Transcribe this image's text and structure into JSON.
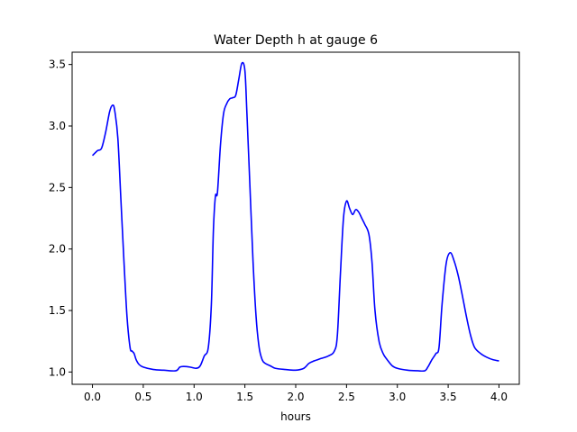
{
  "chart_data": {
    "type": "line",
    "title": "Water Depth h at gauge 6",
    "xlabel": "hours",
    "ylabel": "",
    "xlim": [
      -0.2,
      4.2
    ],
    "ylim": [
      0.9,
      3.6
    ],
    "xticks": [
      0.0,
      0.5,
      1.0,
      1.5,
      2.0,
      2.5,
      3.0,
      3.5,
      4.0
    ],
    "xtick_labels": [
      "0.0",
      "0.5",
      "1.0",
      "1.5",
      "2.0",
      "2.5",
      "3.0",
      "3.5",
      "4.0"
    ],
    "yticks": [
      1.0,
      1.5,
      2.0,
      2.5,
      3.0,
      3.5
    ],
    "ytick_labels": [
      "1.0",
      "1.5",
      "2.0",
      "2.5",
      "3.0",
      "3.5"
    ],
    "grid": false,
    "series": [
      {
        "color": "#0000ff",
        "x": [
          0.0,
          0.05,
          0.09,
          0.13,
          0.17,
          0.2,
          0.22,
          0.25,
          0.28,
          0.31,
          0.34,
          0.37,
          0.39,
          0.41,
          0.43,
          0.46,
          0.5,
          0.6,
          0.7,
          0.82,
          0.86,
          0.9,
          0.96,
          1.02,
          1.06,
          1.1,
          1.14,
          1.17,
          1.19,
          1.21,
          1.23,
          1.26,
          1.29,
          1.32,
          1.35,
          1.38,
          1.41,
          1.44,
          1.47,
          1.5,
          1.52,
          1.55,
          1.58,
          1.61,
          1.64,
          1.67,
          1.7,
          1.75,
          1.8,
          1.9,
          2.0,
          2.08,
          2.13,
          2.18,
          2.25,
          2.32,
          2.38,
          2.41,
          2.44,
          2.47,
          2.5,
          2.53,
          2.56,
          2.59,
          2.62,
          2.65,
          2.68,
          2.72,
          2.75,
          2.78,
          2.82,
          2.86,
          2.9,
          2.95,
          3.0,
          3.1,
          3.2,
          3.27,
          3.3,
          3.34,
          3.38,
          3.41,
          3.44,
          3.48,
          3.52,
          3.56,
          3.6,
          3.64,
          3.68,
          3.72,
          3.76,
          3.82,
          3.88,
          3.94,
          4.0
        ],
        "y": [
          2.76,
          2.8,
          2.82,
          2.95,
          3.12,
          3.17,
          3.12,
          2.9,
          2.4,
          1.9,
          1.45,
          1.2,
          1.17,
          1.15,
          1.1,
          1.06,
          1.04,
          1.02,
          1.015,
          1.01,
          1.04,
          1.045,
          1.04,
          1.03,
          1.05,
          1.13,
          1.2,
          1.55,
          2.15,
          2.43,
          2.46,
          2.85,
          3.1,
          3.18,
          3.22,
          3.23,
          3.25,
          3.38,
          3.51,
          3.45,
          3.1,
          2.5,
          1.9,
          1.45,
          1.2,
          1.1,
          1.07,
          1.05,
          1.03,
          1.02,
          1.015,
          1.03,
          1.07,
          1.09,
          1.11,
          1.13,
          1.17,
          1.3,
          1.8,
          2.25,
          2.39,
          2.33,
          2.28,
          2.32,
          2.3,
          2.25,
          2.2,
          2.12,
          1.9,
          1.5,
          1.25,
          1.15,
          1.1,
          1.05,
          1.03,
          1.015,
          1.01,
          1.01,
          1.04,
          1.1,
          1.15,
          1.2,
          1.55,
          1.88,
          1.97,
          1.9,
          1.78,
          1.62,
          1.45,
          1.3,
          1.2,
          1.15,
          1.12,
          1.1,
          1.09
        ]
      }
    ]
  }
}
